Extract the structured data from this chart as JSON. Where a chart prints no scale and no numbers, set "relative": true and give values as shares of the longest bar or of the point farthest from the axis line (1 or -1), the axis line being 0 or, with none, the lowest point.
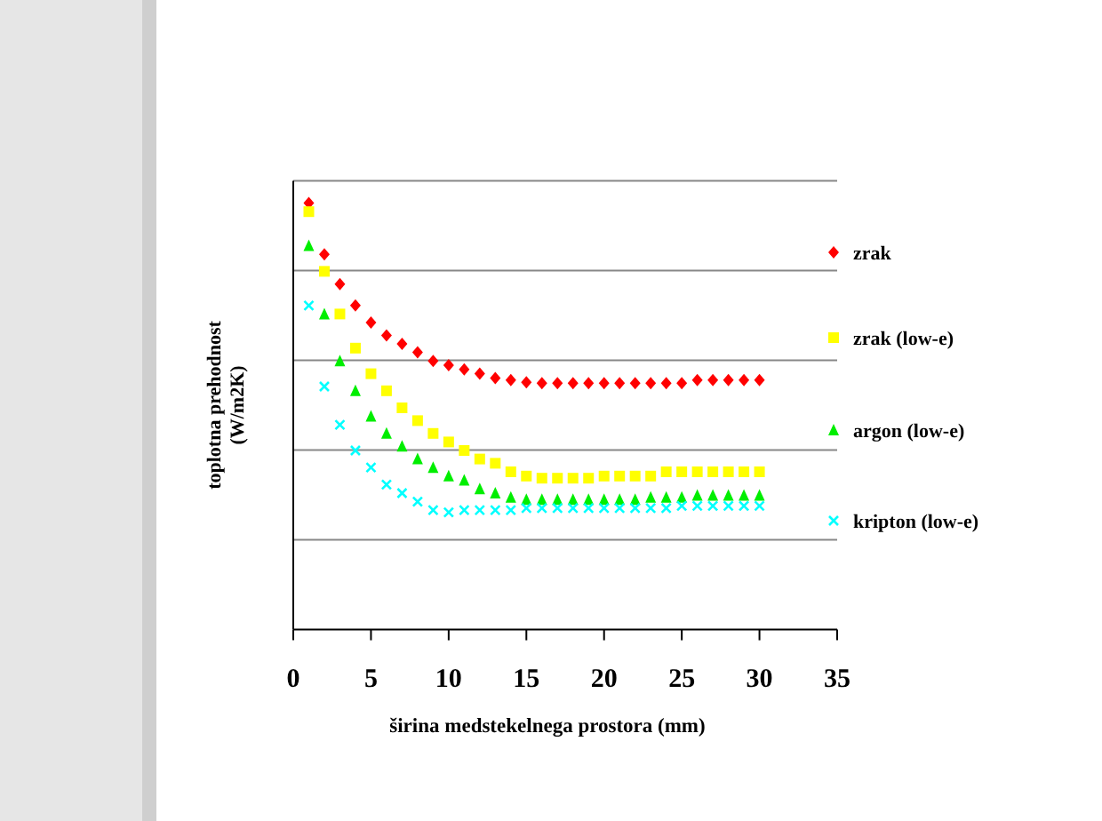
{
  "chart_data": {
    "type": "scatter",
    "relative": true,
    "xlabel": "širina medstekelnega prostora (mm)",
    "ylabel": "toplotna prehodnost (W/m2K)",
    "xlim": [
      0,
      35
    ],
    "xticks": [
      0,
      5,
      10,
      15,
      20,
      25,
      30,
      35
    ],
    "grid": "y",
    "legend": "right",
    "x": [
      1,
      2,
      3,
      4,
      5,
      6,
      7,
      8,
      9,
      10,
      11,
      12,
      13,
      14,
      15,
      16,
      17,
      18,
      19,
      20,
      21,
      22,
      23,
      24,
      25,
      26,
      27,
      28,
      29,
      30
    ],
    "series": [
      {
        "name": "zrak",
        "color": "#ff0000",
        "marker": "diamond",
        "values": [
          1,
          0.88,
          0.81,
          0.76,
          0.72,
          0.69,
          0.67,
          0.65,
          0.63,
          0.62,
          0.61,
          0.6,
          0.59,
          0.585,
          0.58,
          0.578,
          0.578,
          0.578,
          0.578,
          0.578,
          0.578,
          0.578,
          0.578,
          0.578,
          0.578,
          0.585,
          0.585,
          0.585,
          0.585,
          0.585
        ]
      },
      {
        "name": "zrak (low-e)",
        "color": "#ffff00",
        "marker": "square",
        "values": [
          0.98,
          0.84,
          0.74,
          0.66,
          0.6,
          0.56,
          0.52,
          0.49,
          0.46,
          0.44,
          0.42,
          0.4,
          0.39,
          0.37,
          0.36,
          0.355,
          0.355,
          0.355,
          0.355,
          0.36,
          0.36,
          0.36,
          0.36,
          0.37,
          0.37,
          0.37,
          0.37,
          0.37,
          0.37,
          0.37
        ]
      },
      {
        "name": "argon (low-e)",
        "color": "#00ee00",
        "marker": "triangle",
        "values": [
          0.9,
          0.74,
          0.63,
          0.56,
          0.5,
          0.46,
          0.43,
          0.4,
          0.38,
          0.36,
          0.35,
          0.33,
          0.32,
          0.31,
          0.305,
          0.305,
          0.305,
          0.305,
          0.305,
          0.305,
          0.305,
          0.305,
          0.31,
          0.31,
          0.31,
          0.315,
          0.315,
          0.315,
          0.315,
          0.315
        ]
      },
      {
        "name": "kripton (low-e)",
        "color": "#00ffff",
        "marker": "cross",
        "values": [
          0.76,
          0.57,
          0.48,
          0.42,
          0.38,
          0.34,
          0.32,
          0.3,
          0.28,
          0.275,
          0.28,
          0.28,
          0.28,
          0.28,
          0.285,
          0.285,
          0.285,
          0.285,
          0.285,
          0.285,
          0.285,
          0.285,
          0.285,
          0.285,
          0.29,
          0.29,
          0.29,
          0.29,
          0.29,
          0.29
        ]
      }
    ]
  }
}
